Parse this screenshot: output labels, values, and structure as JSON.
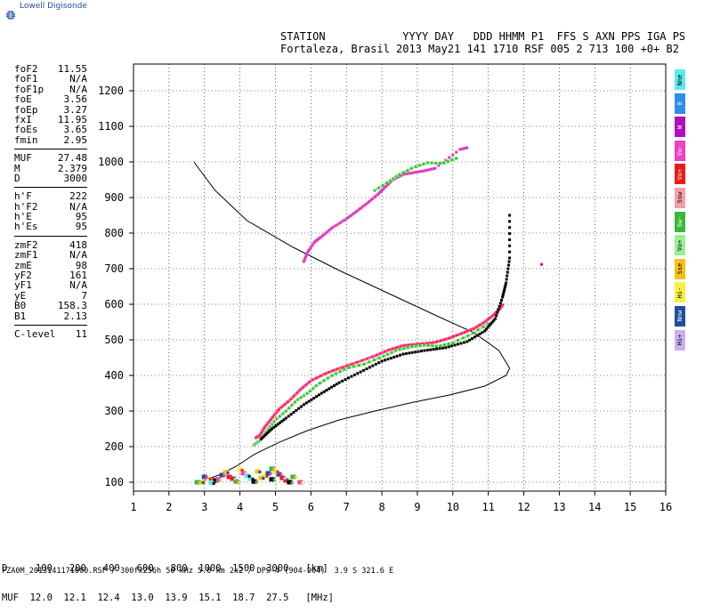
{
  "brand": {
    "name": "Lowell Digisonde"
  },
  "header": {
    "line1": "STATION            YYYY DAY   DDD HHMM P1  FFS S AXN PPS IGA PS",
    "line2": "Fortaleza, Brasil 2013 May21 141 1710 RSF 005 2 713 100 +0+ B2"
  },
  "params": {
    "groups": [
      [
        {
          "label": "foF2",
          "value": "11.55"
        },
        {
          "label": "foF1",
          "value": "N/A"
        },
        {
          "label": "foF1p",
          "value": "N/A"
        },
        {
          "label": "foE",
          "value": "3.56"
        },
        {
          "label": "foEp",
          "value": "3.27"
        },
        {
          "label": "fxI",
          "value": "11.95"
        },
        {
          "label": "foEs",
          "value": "3.65"
        },
        {
          "label": "fmin",
          "value": "2.95"
        }
      ],
      [
        {
          "label": "MUF",
          "value": "27.48"
        },
        {
          "label": "M",
          "value": "2.379"
        },
        {
          "label": "D",
          "value": "3000"
        }
      ],
      [
        {
          "label": "h'F",
          "value": "222"
        },
        {
          "label": "h'F2",
          "value": "N/A"
        },
        {
          "label": "h'E",
          "value": "95"
        },
        {
          "label": "h'Es",
          "value": "95"
        }
      ],
      [
        {
          "label": "zmF2",
          "value": "418"
        },
        {
          "label": "zmF1",
          "value": "N/A"
        },
        {
          "label": "zmE",
          "value": "98"
        },
        {
          "label": "yF2",
          "value": "161"
        },
        {
          "label": "yF1",
          "value": "N/A"
        },
        {
          "label": "yE",
          "value": "7"
        },
        {
          "label": "B0",
          "value": "158.3"
        },
        {
          "label": "B1",
          "value": "2.13"
        }
      ],
      [
        {
          "label": "C-level",
          "value": "11"
        }
      ]
    ]
  },
  "legend": [
    {
      "label": "Nne",
      "color": "#5ee8f0"
    },
    {
      "label": "E",
      "color": "#2f8df0"
    },
    {
      "label": "W",
      "color": "#b010c0"
    },
    {
      "label": "Vo-",
      "color": "#f040c0"
    },
    {
      "label": "Vo+",
      "color": "#f01818"
    },
    {
      "label": "Ssw",
      "color": "#f4a0a8"
    },
    {
      "label": "Sw-",
      "color": "#38b838"
    },
    {
      "label": "Vo+",
      "color": "#98f090"
    },
    {
      "label": "Sse",
      "color": "#f8c010"
    },
    {
      "label": "Hi-",
      "color": "#f8f040"
    },
    {
      "label": "Nnw",
      "color": "#1f4fa0"
    },
    {
      "label": "Hi+",
      "color": "#c8b0f0"
    }
  ],
  "muf_table": {
    "row1": "D     100   200   400   600   800  1000  1500  3000   [km]",
    "row2": "MUF  12.0  12.1  12.4  13.0  13.9  15.1  18.7  27.5   [MHz]"
  },
  "footer": "FZA0M_2013141171000.RSF / 300fx256h 50 kHz 5.0 km 2x2 / DPS-4 (904-904)  3.9 S 321.6 E",
  "chart_data": {
    "type": "scatter",
    "title": "",
    "xlabel": "",
    "ylabel": "",
    "xlim": [
      1,
      16
    ],
    "ylim": [
      75,
      1275
    ],
    "xticks": [
      "1",
      "2",
      "3",
      "4",
      "5",
      "6",
      "7",
      "8",
      "9",
      "10",
      "11",
      "12",
      "13",
      "14",
      "15",
      "16"
    ],
    "yticks": [
      100,
      200,
      300,
      400,
      500,
      600,
      700,
      800,
      900,
      1000,
      1100,
      1200
    ],
    "grid": true,
    "series": [
      {
        "kind": "profile",
        "color": "#000000",
        "points": [
          [
            2.7,
            1000
          ],
          [
            3.3,
            920
          ],
          [
            4.2,
            835
          ],
          [
            5.5,
            760
          ],
          [
            6.8,
            695
          ],
          [
            8.2,
            630
          ],
          [
            9.6,
            565
          ],
          [
            10.6,
            520
          ],
          [
            11.3,
            470
          ],
          [
            11.6,
            420
          ],
          [
            11.5,
            400
          ],
          [
            10.9,
            370
          ],
          [
            9.9,
            345
          ],
          [
            8.9,
            325
          ],
          [
            7.8,
            300
          ],
          [
            6.8,
            275
          ],
          [
            5.9,
            245
          ],
          [
            5.1,
            212
          ],
          [
            4.4,
            178
          ],
          [
            3.9,
            145
          ],
          [
            3.4,
            120
          ],
          [
            3.0,
            105
          ]
        ]
      },
      {
        "kind": "trace",
        "colors": [
          "#ff2a2a",
          "#ff40c0"
        ],
        "points": [
          [
            4.45,
            225
          ],
          [
            4.55,
            230
          ],
          [
            4.7,
            255
          ],
          [
            4.9,
            280
          ],
          [
            5.1,
            305
          ],
          [
            5.4,
            330
          ],
          [
            5.7,
            360
          ],
          [
            6.0,
            385
          ],
          [
            6.4,
            405
          ],
          [
            6.8,
            420
          ],
          [
            7.3,
            437
          ],
          [
            7.8,
            455
          ],
          [
            8.2,
            472
          ],
          [
            8.6,
            484
          ],
          [
            9.0,
            488
          ],
          [
            9.5,
            493
          ],
          [
            9.9,
            505
          ],
          [
            10.3,
            520
          ],
          [
            10.6,
            532
          ],
          [
            10.9,
            550
          ],
          [
            11.15,
            570
          ],
          [
            11.3,
            585
          ],
          [
            11.4,
            598
          ]
        ]
      },
      {
        "kind": "trace",
        "colors": [
          "#38b838",
          "#98f090"
        ],
        "points": [
          [
            4.4,
            205
          ],
          [
            4.6,
            220
          ],
          [
            4.8,
            250
          ],
          [
            5.0,
            275
          ],
          [
            5.3,
            300
          ],
          [
            5.6,
            330
          ],
          [
            5.9,
            350
          ],
          [
            6.2,
            375
          ],
          [
            6.6,
            400
          ],
          [
            7.0,
            420
          ],
          [
            7.5,
            432
          ],
          [
            8.0,
            452
          ],
          [
            8.4,
            470
          ],
          [
            8.8,
            480
          ],
          [
            9.2,
            485
          ],
          [
            9.6,
            482
          ],
          [
            10.0,
            492
          ],
          [
            10.5,
            515
          ],
          [
            11.0,
            545
          ]
        ]
      },
      {
        "kind": "trace",
        "colors": [
          "#000000"
        ],
        "points": [
          [
            4.6,
            222
          ],
          [
            4.9,
            250
          ],
          [
            5.3,
            280
          ],
          [
            5.8,
            318
          ],
          [
            6.3,
            350
          ],
          [
            6.8,
            380
          ],
          [
            7.4,
            410
          ],
          [
            8.0,
            440
          ],
          [
            8.6,
            460
          ],
          [
            9.2,
            470
          ],
          [
            9.8,
            478
          ],
          [
            10.4,
            495
          ],
          [
            10.9,
            525
          ],
          [
            11.2,
            560
          ],
          [
            11.4,
            620
          ],
          [
            11.5,
            660
          ],
          [
            11.6,
            730
          ],
          [
            11.6,
            850
          ]
        ]
      },
      {
        "kind": "trace",
        "colors": [
          "#c040c0",
          "#ff40c0"
        ],
        "points": [
          [
            5.8,
            720
          ],
          [
            5.9,
            745
          ],
          [
            6.1,
            775
          ],
          [
            6.3,
            790
          ],
          [
            6.6,
            815
          ],
          [
            7.0,
            840
          ],
          [
            7.3,
            862
          ],
          [
            7.6,
            885
          ],
          [
            7.9,
            910
          ],
          [
            8.1,
            930
          ],
          [
            8.3,
            950
          ],
          [
            8.6,
            965
          ],
          [
            8.9,
            970
          ],
          [
            9.2,
            975
          ],
          [
            9.5,
            982
          ],
          [
            10.2,
            1035
          ],
          [
            10.4,
            1040
          ]
        ]
      },
      {
        "kind": "trace",
        "colors": [
          "#38b838",
          "#98f090"
        ],
        "points": [
          [
            7.8,
            920
          ],
          [
            8.2,
            945
          ],
          [
            8.5,
            965
          ],
          [
            8.9,
            985
          ],
          [
            9.3,
            998
          ],
          [
            9.7,
            995
          ],
          [
            10.1,
            1010
          ]
        ]
      },
      {
        "kind": "cluster",
        "colors": [
          "#f8c010",
          "#f8f040",
          "#000000",
          "#1f4fa0",
          "#f01818",
          "#38b838",
          "#f040c0",
          "#5ee8f0"
        ],
        "points": [
          [
            2.9,
            100
          ],
          [
            3.1,
            110
          ],
          [
            3.3,
            105
          ],
          [
            3.5,
            120
          ],
          [
            3.7,
            115
          ],
          [
            3.9,
            102
          ],
          [
            4.1,
            125
          ],
          [
            4.3,
            110
          ],
          [
            4.5,
            130
          ],
          [
            4.7,
            118
          ],
          [
            4.9,
            108
          ],
          [
            5.1,
            122
          ],
          [
            5.3,
            105
          ],
          [
            5.5,
            115
          ],
          [
            5.7,
            100
          ],
          [
            3.2,
            98
          ],
          [
            3.6,
            128
          ],
          [
            4.0,
            135
          ],
          [
            4.4,
            102
          ],
          [
            4.8,
            125
          ],
          [
            5.2,
            112
          ],
          [
            2.8,
            100
          ],
          [
            3.4,
            108
          ],
          [
            4.2,
            118
          ],
          [
            4.6,
            112
          ],
          [
            5.0,
            130
          ],
          [
            5.4,
            100
          ],
          [
            3.0,
            115
          ],
          [
            3.8,
            110
          ],
          [
            4.9,
            138
          ]
        ]
      },
      {
        "kind": "trace",
        "colors": [
          "#b010c0"
        ],
        "points": [
          [
            12.5,
            712
          ]
        ]
      }
    ]
  }
}
